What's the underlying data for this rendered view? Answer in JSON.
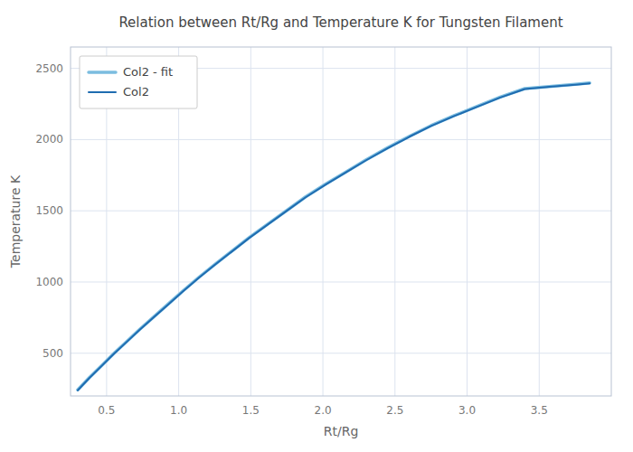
{
  "chart_data": {
    "type": "line",
    "title": "Relation between Rt/Rg and Temperature K for Tungsten Filament",
    "x_label": "Rt/Rg",
    "y_label": "Temperature K",
    "x": [
      0.3,
      0.38,
      0.47,
      0.55,
      0.64,
      0.73,
      0.83,
      0.93,
      1.03,
      1.14,
      1.25,
      1.37,
      1.49,
      1.62,
      1.75,
      1.88,
      2.02,
      2.16,
      2.3,
      2.45,
      2.6,
      2.75,
      2.91,
      3.07,
      3.23,
      3.4,
      3.57,
      3.75,
      3.85
    ],
    "series": [
      {
        "name": "Col2 - fit",
        "color": "#7bbde0",
        "line_style": "solid",
        "values": [
          243,
          328,
          418,
          498,
          583,
          668,
          758,
          848,
          938,
          1033,
          1123,
          1218,
          1313,
          1408,
          1503,
          1598,
          1688,
          1773,
          1858,
          1943,
          2023,
          2098,
          2168,
          2233,
          2298,
          2358,
          2373,
          2388,
          2398
        ]
      },
      {
        "name": "Col2",
        "color": "#1f6cb0",
        "line_style": "solid",
        "values": [
          240,
          325,
          415,
          495,
          580,
          665,
          755,
          845,
          935,
          1030,
          1120,
          1215,
          1310,
          1405,
          1500,
          1595,
          1685,
          1770,
          1855,
          1940,
          2020,
          2095,
          2165,
          2230,
          2295,
          2355,
          2370,
          2385,
          2395
        ]
      }
    ],
    "xlim": [
      0.25,
      4.0
    ],
    "ylim": [
      200,
      2650
    ],
    "xticks": [
      0.5,
      {
        "value": 1.0,
        "label": "1.0"
      },
      1.5,
      {
        "value": 2.0,
        "label": "2.0"
      },
      2.5,
      {
        "value": 3.0,
        "label": "3.0"
      },
      3.5
    ],
    "yticks": [
      500,
      1000,
      1500,
      2000,
      2500
    ],
    "grid": true,
    "legend": "upper left"
  }
}
